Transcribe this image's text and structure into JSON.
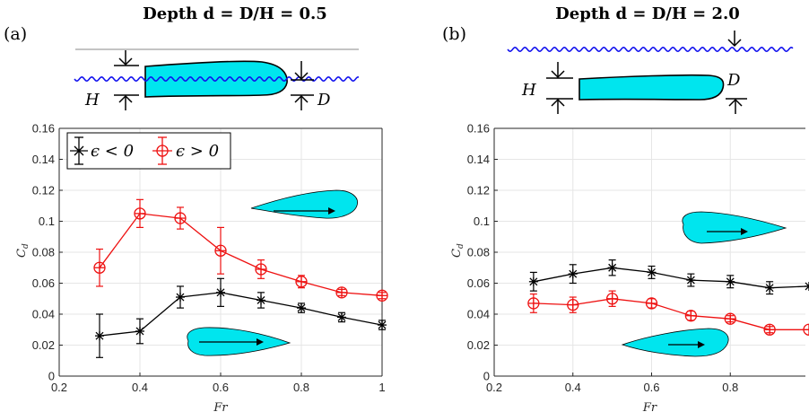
{
  "colors": {
    "series_neg": "#000000",
    "series_pos": "#ee1111",
    "foil_fill": "#00e5ee",
    "wave": "#1111ee",
    "grid": "#e6e6e6"
  },
  "panels": [
    {
      "label": "(a)",
      "title": "Depth d = D/H = 0.5",
      "schematic": {
        "H": "H",
        "D": "D"
      }
    },
    {
      "label": "(b)",
      "title": "Depth d = D/H = 2.0",
      "schematic": {
        "H": "H",
        "D": "D"
      }
    }
  ],
  "legend": {
    "items": [
      "ϵ < 0",
      "ϵ > 0"
    ],
    "placement": "top-left"
  },
  "chart_data": [
    {
      "type": "line",
      "panel": "(a)",
      "xlabel": "Fr",
      "ylabel": "C_d",
      "xlim": [
        0.2,
        1.0
      ],
      "ylim": [
        0,
        0.16
      ],
      "xticks": [
        "0.2",
        "0.4",
        "0.6",
        "0.8",
        "1"
      ],
      "yticks": [
        "0",
        "0.02",
        "0.04",
        "0.06",
        "0.08",
        "0.1",
        "0.12",
        "0.14",
        "0.16"
      ],
      "grid": true,
      "series": [
        {
          "name": "ϵ < 0",
          "marker": "star",
          "color": "#000000",
          "x": [
            0.3,
            0.4,
            0.5,
            0.6,
            0.7,
            0.8,
            0.9,
            1.0
          ],
          "y": [
            0.026,
            0.029,
            0.051,
            0.054,
            0.049,
            0.044,
            0.038,
            0.033
          ],
          "err": [
            0.014,
            0.008,
            0.007,
            0.009,
            0.005,
            0.003,
            0.003,
            0.003
          ]
        },
        {
          "name": "ϵ > 0",
          "marker": "circle-plus",
          "color": "#ee1111",
          "x": [
            0.3,
            0.4,
            0.5,
            0.6,
            0.7,
            0.8,
            0.9,
            1.0
          ],
          "y": [
            0.07,
            0.105,
            0.102,
            0.081,
            0.069,
            0.061,
            0.054,
            0.052
          ],
          "err": [
            0.012,
            0.009,
            0.007,
            0.015,
            0.006,
            0.004,
            0.002,
            0.002
          ]
        }
      ]
    },
    {
      "type": "line",
      "panel": "(b)",
      "xlabel": "Fr",
      "ylabel": "C_d",
      "xlim": [
        0.2,
        1.0
      ],
      "ylim": [
        0,
        0.16
      ],
      "xticks": [
        "0.2",
        "0.4",
        "0.6",
        "0.8"
      ],
      "yticks": [
        "0",
        "0.02",
        "0.04",
        "0.06",
        "0.08",
        "0.1",
        "0.12",
        "0.14",
        "0.16"
      ],
      "grid": true,
      "series": [
        {
          "name": "ϵ < 0",
          "marker": "star",
          "color": "#000000",
          "x": [
            0.3,
            0.4,
            0.5,
            0.6,
            0.7,
            0.8,
            0.9,
            1.0
          ],
          "y": [
            0.061,
            0.066,
            0.07,
            0.067,
            0.062,
            0.061,
            0.057,
            0.058
          ],
          "err": [
            0.006,
            0.006,
            0.005,
            0.004,
            0.004,
            0.004,
            0.004,
            0.0
          ]
        },
        {
          "name": "ϵ > 0",
          "marker": "circle-plus",
          "color": "#ee1111",
          "x": [
            0.3,
            0.4,
            0.5,
            0.6,
            0.7,
            0.8,
            0.9,
            1.0
          ],
          "y": [
            0.047,
            0.046,
            0.05,
            0.047,
            0.039,
            0.037,
            0.03,
            0.03
          ],
          "err": [
            0.006,
            0.005,
            0.005,
            0.003,
            0.003,
            0.002,
            0.002,
            0.0
          ]
        }
      ]
    }
  ]
}
